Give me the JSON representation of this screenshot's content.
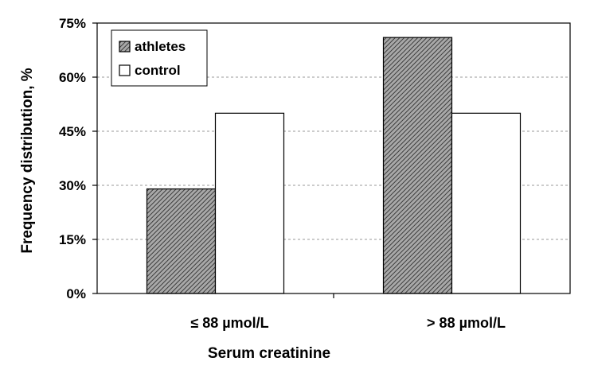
{
  "chart_data": {
    "type": "bar",
    "title": "",
    "xlabel": "Serum creatinine",
    "ylabel": "Frequency distribution, %",
    "categories": [
      "≤ 88 µmol/L",
      "> 88 µmol/L"
    ],
    "series": [
      {
        "name": "athletes",
        "values": [
          29,
          71
        ],
        "pattern": "hatched",
        "color": "#8a8a8a"
      },
      {
        "name": "control",
        "values": [
          50,
          50
        ],
        "pattern": "solid",
        "color": "#ffffff"
      }
    ],
    "ylim": [
      0,
      75
    ],
    "yticks": [
      0,
      15,
      30,
      45,
      60,
      75
    ],
    "ytick_labels": [
      "0%",
      "15%",
      "30%",
      "45%",
      "60%",
      "75%"
    ],
    "grid": "horizontal dashed",
    "legend_position": "top-left"
  }
}
